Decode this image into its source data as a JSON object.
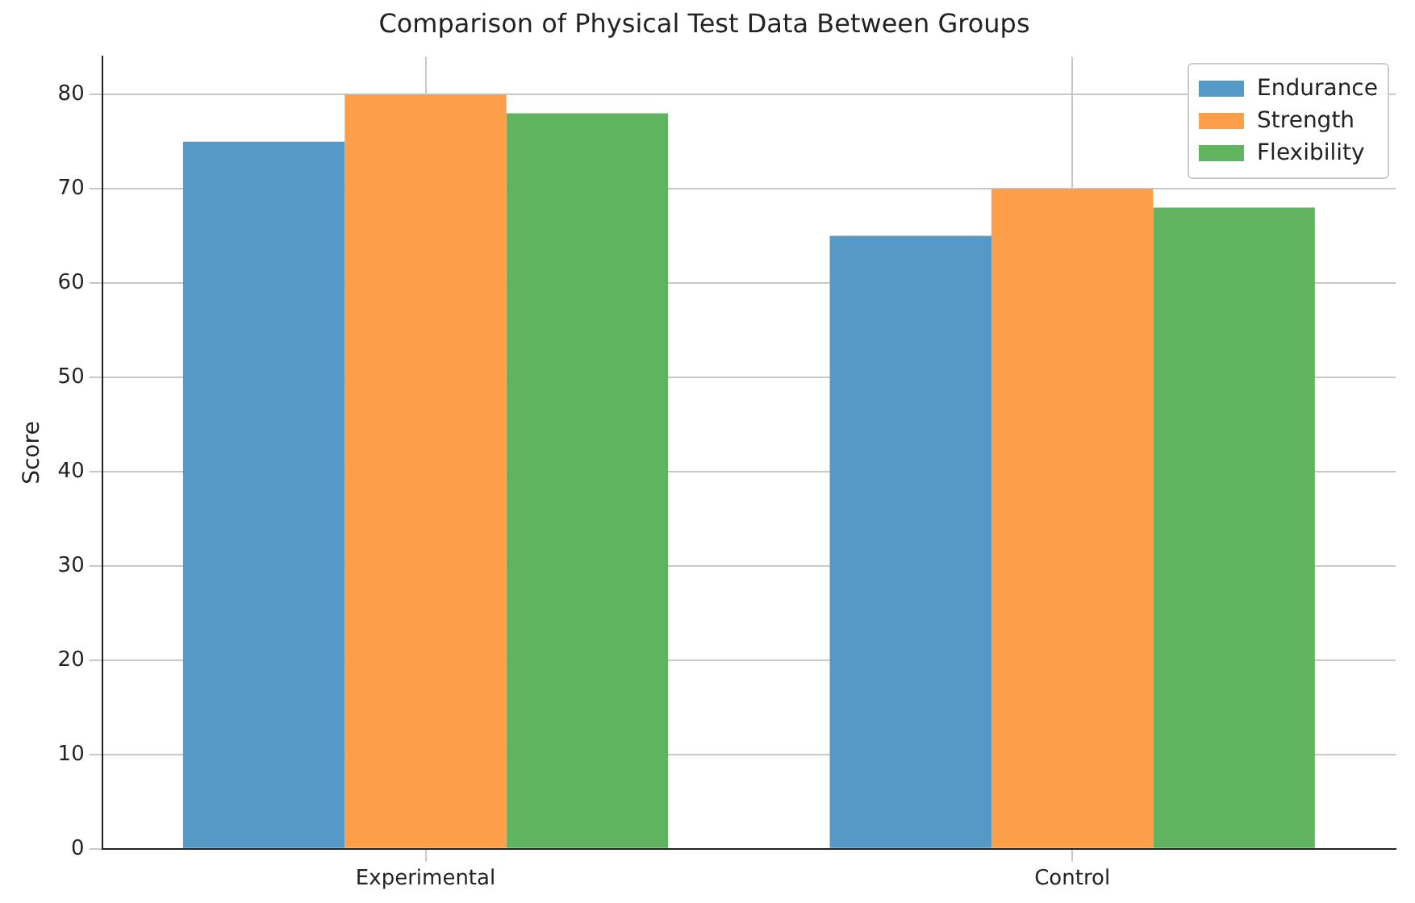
{
  "chart_data": {
    "type": "bar",
    "title": "Comparison of Physical Test Data Between Groups",
    "ylabel": "Score",
    "categories": [
      "Experimental",
      "Control"
    ],
    "series": [
      {
        "name": "Endurance",
        "color": "#5698c6",
        "values": [
          75,
          65
        ]
      },
      {
        "name": "Strength",
        "color": "#fd9e4a",
        "values": [
          80,
          70
        ]
      },
      {
        "name": "Flexibility",
        "color": "#60b35f",
        "values": [
          78,
          68
        ]
      }
    ],
    "ylim": [
      0,
      84
    ],
    "yticks": [
      0,
      10,
      20,
      30,
      40,
      50,
      60,
      70,
      80
    ],
    "grid": true,
    "legend": "top right"
  }
}
